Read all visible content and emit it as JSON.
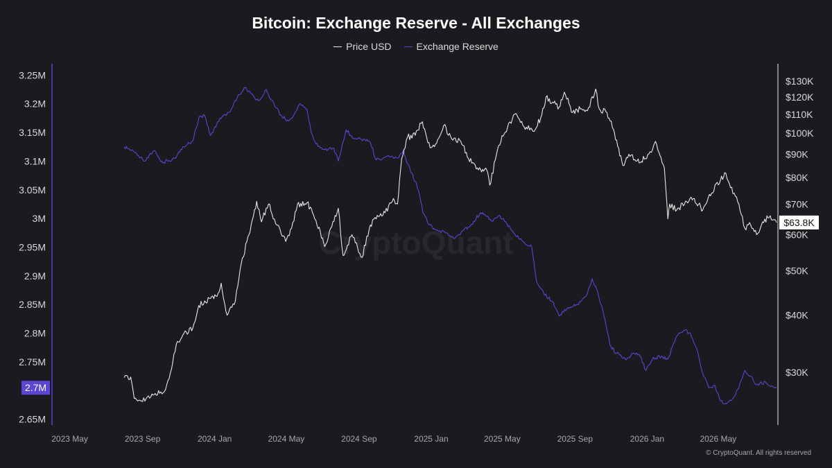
{
  "title": "Bitcoin: Exchange Reserve - All Exchanges",
  "legend": [
    {
      "label": "Price USD",
      "color": "#e8e8e8"
    },
    {
      "label": "Exchange Reserve",
      "color": "#5b45d6"
    }
  ],
  "copyright": "© CryptoQuant. All rights reserved",
  "watermark": "CryptoQuant",
  "colors": {
    "background": "#1b1a1f",
    "reserve": "#5b45d6",
    "price": "#e8e8e8",
    "badge_reserve": "#5b45d6"
  },
  "chart_data": {
    "type": "line",
    "title": "Bitcoin: Exchange Reserve - All Exchanges",
    "x_tick_labels": [
      "2023 May",
      "2023 Sep",
      "2024 Jan",
      "2024 May",
      "2024 Sep",
      "2025 Jan",
      "2025 May",
      "2025 Sep",
      "2026 Jan",
      "2026 May"
    ],
    "left_axis": {
      "name": "Exchange Reserve",
      "ylim": [
        2.64,
        3.26
      ],
      "ticks": [
        2.65,
        2.7,
        2.75,
        2.8,
        2.85,
        2.9,
        2.95,
        3.0,
        3.05,
        3.1,
        3.15,
        3.2,
        3.25
      ],
      "tick_labels": [
        "2.65M",
        "2.7M",
        "2.75M",
        "2.8M",
        "2.85M",
        "2.9M",
        "2.95M",
        "3M",
        "3.05M",
        "3.1M",
        "3.15M",
        "3.2M",
        "3.25M"
      ],
      "current_label": "2.7M",
      "current_value": 2.705
    },
    "right_axis": {
      "name": "Price USD",
      "scale": "log",
      "ticks": [
        30000,
        40000,
        50000,
        60000,
        70000,
        80000,
        90000,
        100000,
        110000,
        120000,
        130000
      ],
      "tick_labels": [
        "$30K",
        "$40K",
        "$50K",
        "$60K",
        "$70K",
        "$80K",
        "$90K",
        "$100K",
        "$110K",
        "$120K",
        "$130K"
      ],
      "current_label": "$63.8K",
      "current_value": 63800
    },
    "series": [
      {
        "name": "Exchange Reserve",
        "axis": "left",
        "unit": "M BTC",
        "points": [
          [
            "2023-08-01",
            3.125
          ],
          [
            "2023-08-20",
            3.115
          ],
          [
            "2023-09-05",
            3.1
          ],
          [
            "2023-09-20",
            3.118
          ],
          [
            "2023-10-05",
            3.097
          ],
          [
            "2023-10-25",
            3.105
          ],
          [
            "2023-11-10",
            3.125
          ],
          [
            "2023-11-25",
            3.135
          ],
          [
            "2023-12-05",
            3.175
          ],
          [
            "2023-12-15",
            3.18
          ],
          [
            "2023-12-25",
            3.145
          ],
          [
            "2024-01-10",
            3.175
          ],
          [
            "2024-01-25",
            3.185
          ],
          [
            "2024-02-08",
            3.21
          ],
          [
            "2024-02-20",
            3.228
          ],
          [
            "2024-03-01",
            3.22
          ],
          [
            "2024-03-15",
            3.205
          ],
          [
            "2024-03-28",
            3.225
          ],
          [
            "2024-04-10",
            3.2
          ],
          [
            "2024-04-22",
            3.18
          ],
          [
            "2024-05-05",
            3.17
          ],
          [
            "2024-05-15",
            3.183
          ],
          [
            "2024-05-25",
            3.2
          ],
          [
            "2024-06-05",
            3.19
          ],
          [
            "2024-06-12",
            3.15
          ],
          [
            "2024-06-20",
            3.13
          ],
          [
            "2024-07-05",
            3.12
          ],
          [
            "2024-07-20",
            3.123
          ],
          [
            "2024-07-28",
            3.1
          ],
          [
            "2024-08-10",
            3.155
          ],
          [
            "2024-08-20",
            3.143
          ],
          [
            "2024-09-05",
            3.138
          ],
          [
            "2024-09-20",
            3.133
          ],
          [
            "2024-09-30",
            3.102
          ],
          [
            "2024-10-15",
            3.107
          ],
          [
            "2024-10-25",
            3.108
          ],
          [
            "2024-11-05",
            3.105
          ],
          [
            "2024-11-15",
            3.12
          ],
          [
            "2024-11-22",
            3.095
          ],
          [
            "2024-12-01",
            3.075
          ],
          [
            "2024-12-10",
            3.05
          ],
          [
            "2024-12-18",
            3.01
          ],
          [
            "2024-12-28",
            2.99
          ],
          [
            "2025-01-10",
            2.98
          ],
          [
            "2025-01-25",
            2.975
          ],
          [
            "2025-02-10",
            2.965
          ],
          [
            "2025-02-25",
            2.98
          ],
          [
            "2025-03-10",
            2.99
          ],
          [
            "2025-03-25",
            3.01
          ],
          [
            "2025-04-05",
            3.003
          ],
          [
            "2025-04-15",
            2.995
          ],
          [
            "2025-04-25",
            3.005
          ],
          [
            "2025-05-05",
            2.995
          ],
          [
            "2025-05-20",
            2.975
          ],
          [
            "2025-06-05",
            2.96
          ],
          [
            "2025-06-20",
            2.95
          ],
          [
            "2025-06-28",
            2.89
          ],
          [
            "2025-07-10",
            2.87
          ],
          [
            "2025-07-25",
            2.855
          ],
          [
            "2025-08-05",
            2.83
          ],
          [
            "2025-08-20",
            2.845
          ],
          [
            "2025-09-05",
            2.85
          ],
          [
            "2025-09-20",
            2.865
          ],
          [
            "2025-09-30",
            2.895
          ],
          [
            "2025-10-10",
            2.87
          ],
          [
            "2025-10-20",
            2.83
          ],
          [
            "2025-10-30",
            2.78
          ],
          [
            "2025-11-10",
            2.765
          ],
          [
            "2025-11-25",
            2.755
          ],
          [
            "2025-12-10",
            2.765
          ],
          [
            "2025-12-20",
            2.76
          ],
          [
            "2025-12-30",
            2.735
          ],
          [
            "2026-01-10",
            2.755
          ],
          [
            "2026-01-25",
            2.76
          ],
          [
            "2026-02-05",
            2.755
          ],
          [
            "2026-02-20",
            2.795
          ],
          [
            "2026-03-05",
            2.805
          ],
          [
            "2026-03-15",
            2.8
          ],
          [
            "2026-03-25",
            2.775
          ],
          [
            "2026-04-05",
            2.73
          ],
          [
            "2026-04-15",
            2.705
          ],
          [
            "2026-04-25",
            2.71
          ],
          [
            "2026-05-05",
            2.682
          ],
          [
            "2026-05-15",
            2.677
          ],
          [
            "2026-05-25",
            2.685
          ],
          [
            "2026-06-05",
            2.705
          ],
          [
            "2026-06-15",
            2.735
          ],
          [
            "2026-06-25",
            2.725
          ],
          [
            "2026-07-05",
            2.71
          ],
          [
            "2026-07-20",
            2.715
          ],
          [
            "2026-07-30",
            2.708
          ],
          [
            "2026-08-08",
            2.705
          ]
        ]
      },
      {
        "name": "Price USD",
        "axis": "right",
        "unit": "USD",
        "points": [
          [
            "2023-08-01",
            29200
          ],
          [
            "2023-08-12",
            29300
          ],
          [
            "2023-08-18",
            26300
          ],
          [
            "2023-09-01",
            25900
          ],
          [
            "2023-09-15",
            26500
          ],
          [
            "2023-09-30",
            27000
          ],
          [
            "2023-10-10",
            27500
          ],
          [
            "2023-10-20",
            30500
          ],
          [
            "2023-10-28",
            34500
          ],
          [
            "2023-11-10",
            36500
          ],
          [
            "2023-11-25",
            37500
          ],
          [
            "2023-12-05",
            42000
          ],
          [
            "2023-12-15",
            43000
          ],
          [
            "2023-12-25",
            43500
          ],
          [
            "2024-01-05",
            44000
          ],
          [
            "2024-01-12",
            47000
          ],
          [
            "2024-01-22",
            40000
          ],
          [
            "2024-02-05",
            43000
          ],
          [
            "2024-02-15",
            52000
          ],
          [
            "2024-02-28",
            60000
          ],
          [
            "2024-03-12",
            71000
          ],
          [
            "2024-03-20",
            64000
          ],
          [
            "2024-04-01",
            70000
          ],
          [
            "2024-04-15",
            63000
          ],
          [
            "2024-04-30",
            58000
          ],
          [
            "2024-05-10",
            62000
          ],
          [
            "2024-05-20",
            70000
          ],
          [
            "2024-06-05",
            70500
          ],
          [
            "2024-06-20",
            64500
          ],
          [
            "2024-07-05",
            56500
          ],
          [
            "2024-07-15",
            62000
          ],
          [
            "2024-07-28",
            68500
          ],
          [
            "2024-08-05",
            54000
          ],
          [
            "2024-08-20",
            60000
          ],
          [
            "2024-09-06",
            53500
          ],
          [
            "2024-09-20",
            63000
          ],
          [
            "2024-09-30",
            65000
          ],
          [
            "2024-10-15",
            67000
          ],
          [
            "2024-10-29",
            72000
          ],
          [
            "2024-11-05",
            70000
          ],
          [
            "2024-11-12",
            88000
          ],
          [
            "2024-11-22",
            98000
          ],
          [
            "2024-12-05",
            99000
          ],
          [
            "2024-12-17",
            106000
          ],
          [
            "2024-12-30",
            93000
          ],
          [
            "2025-01-10",
            95000
          ],
          [
            "2025-01-22",
            104000
          ],
          [
            "2025-02-05",
            97000
          ],
          [
            "2025-02-20",
            96000
          ],
          [
            "2025-03-05",
            88000
          ],
          [
            "2025-03-20",
            84000
          ],
          [
            "2025-04-05",
            83000
          ],
          [
            "2025-04-10",
            77000
          ],
          [
            "2025-04-25",
            94000
          ],
          [
            "2025-05-10",
            103000
          ],
          [
            "2025-05-22",
            110000
          ],
          [
            "2025-06-05",
            104000
          ],
          [
            "2025-06-22",
            101000
          ],
          [
            "2025-07-05",
            108000
          ],
          [
            "2025-07-14",
            120000
          ],
          [
            "2025-07-25",
            117000
          ],
          [
            "2025-08-05",
            114000
          ],
          [
            "2025-08-14",
            123000
          ],
          [
            "2025-08-28",
            111000
          ],
          [
            "2025-09-10",
            113000
          ],
          [
            "2025-09-22",
            112000
          ],
          [
            "2025-10-06",
            125000
          ],
          [
            "2025-10-12",
            113000
          ],
          [
            "2025-10-25",
            111000
          ],
          [
            "2025-11-05",
            102000
          ],
          [
            "2025-11-21",
            85000
          ],
          [
            "2025-12-01",
            90000
          ],
          [
            "2025-12-15",
            87000
          ],
          [
            "2025-12-31",
            88000
          ],
          [
            "2026-01-10",
            92000
          ],
          [
            "2026-01-15",
            96000
          ],
          [
            "2026-01-30",
            84000
          ],
          [
            "2026-02-05",
            65000
          ],
          [
            "2026-02-08",
            70000
          ],
          [
            "2026-02-20",
            68000
          ],
          [
            "2026-03-05",
            70000
          ],
          [
            "2026-03-20",
            72000
          ],
          [
            "2026-04-05",
            68000
          ],
          [
            "2026-04-20",
            74000
          ],
          [
            "2026-05-05",
            79000
          ],
          [
            "2026-05-12",
            82000
          ],
          [
            "2026-05-22",
            76000
          ],
          [
            "2026-06-05",
            70000
          ],
          [
            "2026-06-15",
            62000
          ],
          [
            "2026-06-25",
            63000
          ],
          [
            "2026-07-05",
            60000
          ],
          [
            "2026-07-15",
            64000
          ],
          [
            "2026-07-28",
            66000
          ],
          [
            "2026-08-08",
            63800
          ]
        ]
      }
    ]
  }
}
